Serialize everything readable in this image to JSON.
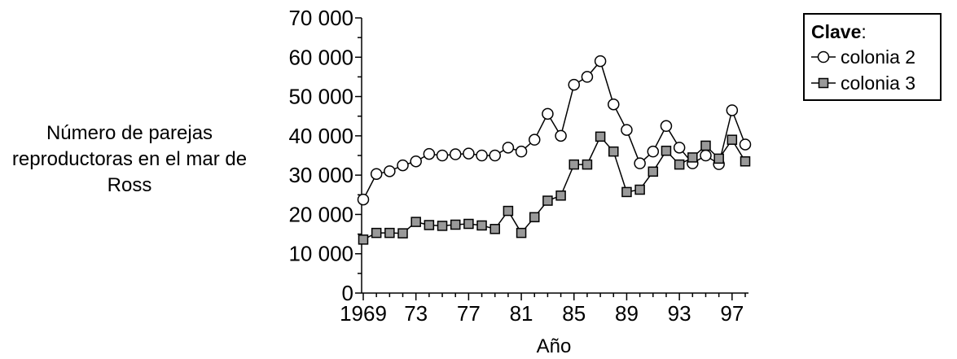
{
  "chart_data": {
    "type": "line",
    "ylabel": "Número de parejas reproductoras en el mar de Ross",
    "xlabel": "Año",
    "ylim": [
      0,
      70000
    ],
    "yticks": [
      0,
      10000,
      20000,
      30000,
      40000,
      50000,
      60000,
      70000
    ],
    "ytick_labels": [
      "0",
      "10 000",
      "20 000",
      "30 000",
      "40 000",
      "50 000",
      "60 000",
      "70 000"
    ],
    "xlim": [
      1969,
      1998
    ],
    "xticks": [
      1969,
      1973,
      1977,
      1981,
      1985,
      1989,
      1993,
      1997
    ],
    "xtick_labels": [
      "1969",
      "73",
      "77",
      "81",
      "85",
      "89",
      "93",
      "97"
    ],
    "legend": {
      "title": "Clave",
      "title_suffix": ":",
      "position": "top-right"
    },
    "series": [
      {
        "name": "colonia 2",
        "marker": "circle",
        "x": [
          1969,
          1970,
          1971,
          1972,
          1973,
          1974,
          1975,
          1976,
          1977,
          1978,
          1979,
          1980,
          1981,
          1982,
          1983,
          1984,
          1985,
          1986,
          1987,
          1988,
          1989,
          1990,
          1991,
          1992,
          1993,
          1994,
          1995,
          1996,
          1997,
          1998
        ],
        "values": [
          23800,
          30300,
          31000,
          32500,
          33500,
          35400,
          35000,
          35300,
          35500,
          35000,
          35000,
          37000,
          36000,
          39000,
          45600,
          40000,
          53000,
          55000,
          59000,
          48000,
          41500,
          33000,
          36000,
          42500,
          37000,
          33000,
          35000,
          32800,
          46500,
          37800
        ]
      },
      {
        "name": "colonia 3",
        "marker": "square",
        "x": [
          1969,
          1970,
          1971,
          1972,
          1973,
          1974,
          1975,
          1976,
          1977,
          1978,
          1979,
          1980,
          1981,
          1982,
          1983,
          1984,
          1985,
          1986,
          1987,
          1988,
          1989,
          1990,
          1991,
          1992,
          1993,
          1994,
          1995,
          1996,
          1997,
          1998
        ],
        "values": [
          13600,
          15300,
          15300,
          15200,
          18100,
          17300,
          17100,
          17400,
          17600,
          17200,
          16300,
          20900,
          15300,
          19300,
          23500,
          24800,
          32700,
          32700,
          39800,
          36000,
          25700,
          26300,
          30900,
          36200,
          32700,
          34500,
          37500,
          34200,
          39000,
          33500
        ]
      }
    ]
  }
}
